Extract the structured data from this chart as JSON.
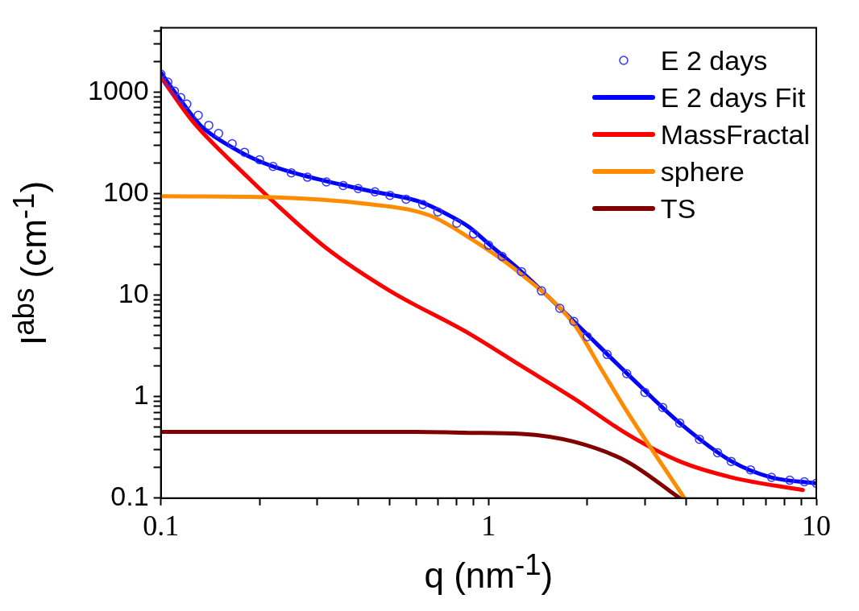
{
  "chart_data": {
    "type": "line",
    "log": "xy",
    "grid": false,
    "legend": "top right",
    "xlabel": "q (nm$^{-1}$)",
    "ylabel": "I$^{abs}$ (cm$^{-1}$)",
    "xlim": [
      0.1,
      10
    ],
    "ylim": [
      0.1,
      4300
    ],
    "xticks": [
      0.1,
      {
        "value": 0.2,
        "label": null
      },
      {
        "value": 0.3,
        "label": null
      },
      {
        "value": 0.4,
        "label": null
      },
      {
        "value": 0.5,
        "label": null
      },
      {
        "value": 0.6,
        "label": null
      },
      {
        "value": 0.7,
        "label": null
      },
      {
        "value": 0.8,
        "label": null
      },
      {
        "value": 0.9,
        "label": null
      },
      1,
      {
        "value": 2,
        "label": null
      },
      {
        "value": 3,
        "label": null
      },
      {
        "value": 4,
        "label": null
      },
      {
        "value": 5,
        "label": null
      },
      {
        "value": 6,
        "label": null
      },
      {
        "value": 7,
        "label": null
      },
      {
        "value": 8,
        "label": null
      },
      {
        "value": 9,
        "label": null
      },
      10
    ],
    "yticks": [
      0.1,
      {
        "value": 0.2,
        "label": null
      },
      {
        "value": 0.3,
        "label": null
      },
      {
        "value": 0.4,
        "label": null
      },
      {
        "value": 0.5,
        "label": null
      },
      {
        "value": 0.6,
        "label": null
      },
      {
        "value": 0.7,
        "label": null
      },
      {
        "value": 0.8,
        "label": null
      },
      {
        "value": 0.9,
        "label": null
      },
      1,
      {
        "value": 2,
        "label": null
      },
      {
        "value": 3,
        "label": null
      },
      {
        "value": 4,
        "label": null
      },
      {
        "value": 5,
        "label": null
      },
      {
        "value": 6,
        "label": null
      },
      {
        "value": 7,
        "label": null
      },
      {
        "value": 8,
        "label": null
      },
      {
        "value": 9,
        "label": null
      },
      10,
      {
        "value": 20,
        "label": null
      },
      {
        "value": 30,
        "label": null
      },
      {
        "value": 40,
        "label": null
      },
      {
        "value": 50,
        "label": null
      },
      {
        "value": 60,
        "label": null
      },
      {
        "value": 70,
        "label": null
      },
      {
        "value": 80,
        "label": null
      },
      {
        "value": 90,
        "label": null
      },
      100,
      {
        "value": 200,
        "label": null
      },
      {
        "value": 300,
        "label": null
      },
      {
        "value": 400,
        "label": null
      },
      {
        "value": 500,
        "label": null
      },
      {
        "value": 600,
        "label": null
      },
      {
        "value": 700,
        "label": null
      },
      {
        "value": 800,
        "label": null
      },
      {
        "value": 900,
        "label": null
      },
      1000,
      {
        "value": 2000,
        "label": null
      },
      {
        "value": 3000,
        "label": null
      },
      {
        "value": 4000,
        "label": null
      }
    ],
    "series": [
      {
        "name": "E 2 days",
        "type": "scatter",
        "marker": "circle",
        "color": "#3333ff",
        "x": [
          0.1,
          0.105,
          0.11,
          0.115,
          0.12,
          0.13,
          0.14,
          0.15,
          0.165,
          0.18,
          0.2,
          0.22,
          0.25,
          0.28,
          0.32,
          0.36,
          0.4,
          0.45,
          0.5,
          0.56,
          0.63,
          0.7,
          0.8,
          0.9,
          1.0,
          1.1,
          1.26,
          1.45,
          1.65,
          1.82,
          2.0,
          2.3,
          2.64,
          3.0,
          3.4,
          3.83,
          4.4,
          5.0,
          5.5,
          6.3,
          7.3,
          8.3,
          9.2,
          10
        ],
        "values": [
          1500,
          1250,
          1020,
          880,
          760,
          590,
          470,
          390,
          310,
          255,
          215,
          185,
          160,
          145,
          130,
          120,
          112,
          104,
          96,
          88,
          78,
          66,
          51,
          40,
          31,
          24,
          17,
          11,
          7.4,
          5.5,
          3.9,
          2.6,
          1.68,
          1.1,
          0.78,
          0.55,
          0.38,
          0.28,
          0.23,
          0.19,
          0.16,
          0.15,
          0.145,
          0.14
        ]
      },
      {
        "name": "E 2 days Fit",
        "type": "line",
        "marker": "none",
        "line_style": "solid",
        "color": "#0000ff",
        "x": [
          0.1,
          0.112,
          0.132,
          0.165,
          0.206,
          0.287,
          0.424,
          0.624,
          0.78,
          0.87,
          1.0,
          1.26,
          1.82,
          2.64,
          3.83,
          5.52,
          7.29,
          10
        ],
        "values": [
          1550,
          930,
          470,
          285,
          200,
          144,
          108,
          82,
          58,
          47,
          32,
          17,
          5.5,
          1.7,
          0.55,
          0.23,
          0.16,
          0.14
        ]
      },
      {
        "name": "MassFractal",
        "type": "line",
        "marker": "none",
        "line_style": "solid",
        "color": "#ff0000",
        "x": [
          0.1,
          0.125,
          0.184,
          0.214,
          0.32,
          0.5,
          0.87,
          1.26,
          1.82,
          2.64,
          3.83,
          5.52,
          9.1
        ],
        "values": [
          1400,
          515,
          145,
          91,
          29,
          11,
          4.2,
          2.0,
          0.96,
          0.43,
          0.23,
          0.16,
          0.12
        ]
      },
      {
        "name": "sphere",
        "type": "line",
        "marker": "none",
        "line_style": "solid",
        "color": "#ff8c00",
        "x": [
          0.1,
          0.217,
          0.424,
          0.66,
          0.87,
          1.26,
          1.82,
          2.2,
          2.64,
          3.96
        ],
        "values": [
          94,
          92,
          79,
          61,
          37,
          16,
          5.2,
          1.9,
          0.72,
          0.1
        ]
      },
      {
        "name": "TS",
        "type": "line",
        "marker": "none",
        "line_style": "solid",
        "color": "#800000",
        "x": [
          0.1,
          0.3,
          0.6,
          0.87,
          1.26,
          1.82,
          2.64,
          3.83
        ],
        "values": [
          0.45,
          0.45,
          0.45,
          0.44,
          0.43,
          0.36,
          0.23,
          0.1
        ]
      }
    ]
  }
}
